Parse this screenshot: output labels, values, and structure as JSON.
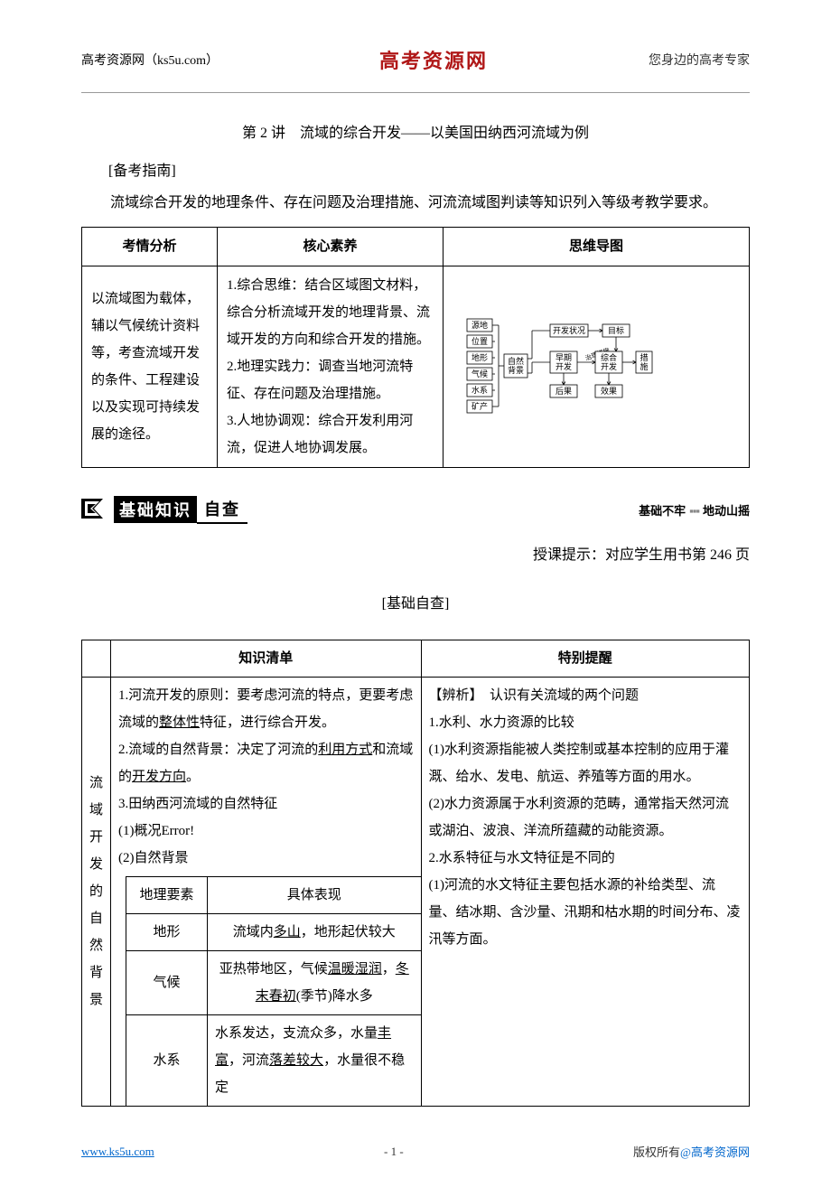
{
  "header": {
    "left": "高考资源网（ks5u.com）",
    "center": "高考资源网",
    "right": "您身边的高考专家"
  },
  "title": "第 2 讲　流域的综合开发——以美国田纳西河流域为例",
  "guide_label": "[备考指南]",
  "guide_para": "流域综合开发的地理条件、存在问题及治理措施、河流流域图判读等知识列入等级考教学要求。",
  "table1": {
    "headers": [
      "考情分析",
      "核心素养",
      "思维导图"
    ],
    "col1": "以流域图为载体，辅以气候统计资料等，考查流域开发的条件、工程建设以及实现可持续发展的途径。",
    "col2": "1.综合思维：结合区域图文材料，综合分析流域开发的地理背景、流域开发的方向和综合开发的措施。\n2.地理实践力：调查当地河流特征、存在问题及治理措施。\n3.人地协调观：综合开发利用河流，促进人地协调发展。"
  },
  "diagram": {
    "left_nodes": [
      "源地",
      "位置",
      "地形",
      "气候",
      "水系",
      "矿产"
    ],
    "mid_left": "自然\n背景",
    "top_row": [
      "开发状况",
      "目标"
    ],
    "mid_row": [
      "早期\n开发",
      "综合\n开发",
      "措\n施"
    ],
    "bot_row": [
      "后果",
      "效果"
    ],
    "arrow_label": "治理措施",
    "box_stroke": "#000000",
    "box_fill": "#ffffff",
    "font_size": 9,
    "line_color": "#000000"
  },
  "banner": {
    "black": "基础知识",
    "white": "自查",
    "right1": "基础不牢",
    "right2": "地动山摇"
  },
  "right_note": "授课提示：对应学生用书第 246 页",
  "center_label": "[基础自查]",
  "table2": {
    "headers": [
      "",
      "知识清单",
      "特别提醒"
    ],
    "vert_label": "流域开发的自然背景",
    "left_content": {
      "p1a": "1.河流开发的原则：要考虑河流的特点，更要考虑流域的",
      "p1u": "整体性",
      "p1b": "特征，进行综合开发。",
      "p2a": "2.流域的自然背景：决定了河流的",
      "p2u": "利用方式",
      "p2b": "和流域的",
      "p2u2": "开发方向",
      "p2c": "。",
      "p3": "3.田纳西河流域的自然特征",
      "p4": "(1)概况Error!",
      "p5": "(2)自然背景"
    },
    "inner": {
      "h1": "地理要素",
      "h2": "具体表现",
      "r1c1": "地形",
      "r1c2a": "流域内",
      "r1c2u": "多山",
      "r1c2b": "，地形起伏较大",
      "r2c1": "气候",
      "r2c2a": "亚热带地区，气候",
      "r2c2u1": "温暖湿润",
      "r2c2b": "，",
      "r2c2u2": "冬末春初",
      "r2c2c": "(季节)降水多",
      "r3c1": "水系",
      "r3c2a": "水系发达，支流众多，水量",
      "r3c2u1": "丰富",
      "r3c2b": "，河流",
      "r3c2u2": "落差较大",
      "r3c2c": "，水量很不稳定"
    },
    "right_content": {
      "t1": "【辨析】　认识有关流域的两个问题",
      "t2": "1.水利、水力资源的比较",
      "t3": "(1)水利资源指能被人类控制或基本控制的应用于灌溉、给水、发电、航运、养殖等方面的用水。",
      "t4": "(2)水力资源属于水利资源的范畴，通常指天然河流或湖泊、波浪、洋流所蕴藏的动能资源。",
      "t5": "2.水系特征与水文特征是不同的",
      "t6": "(1)河流的水文特征主要包括水源的补给类型、流量、结冰期、含沙量、汛期和枯水期的时间分布、凌汛等方面。"
    }
  },
  "footer": {
    "left": "www.ks5u.com",
    "center": "- 1 -",
    "right_pre": "版权所有",
    "right_at": "@",
    "right_post": "高考资源网"
  }
}
